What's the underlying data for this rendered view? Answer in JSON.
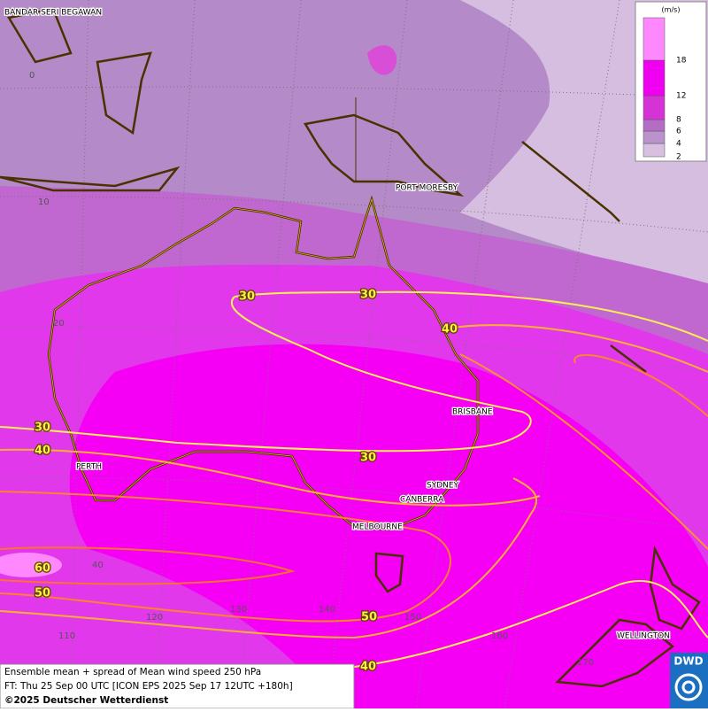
{
  "legend": {
    "unit": "(m/s)",
    "levels": [
      2,
      4,
      6,
      8,
      12,
      18
    ],
    "colors": [
      "#d8c0e0",
      "#bb92cd",
      "#b46cc4",
      "#d633d6",
      "#f000f0",
      "#ff88ff"
    ]
  },
  "places": [
    "BANDAR SERI BEGAWAN",
    "PORT MORESBY",
    "BRISBANE",
    "PERTH",
    "SYDNEY",
    "CANBERRA",
    "MELBOURNE",
    "WELLINGTON"
  ],
  "latitudes": [
    0,
    10,
    20,
    40
  ],
  "longitudes": [
    110,
    120,
    130,
    140,
    150,
    160,
    170
  ],
  "contour_labels": [
    30,
    30,
    40,
    30,
    40,
    30,
    60,
    50,
    50,
    40
  ],
  "caption": [
    "Ensemble mean + spread of Mean wind speed 250 hPa",
    "FT: Thu 25 Sep 00 UTC [ICON EPS 2025 Sep 17 12UTC +180h]",
    "©2025 Deutscher Wetterdienst"
  ],
  "logo": "DWD"
}
